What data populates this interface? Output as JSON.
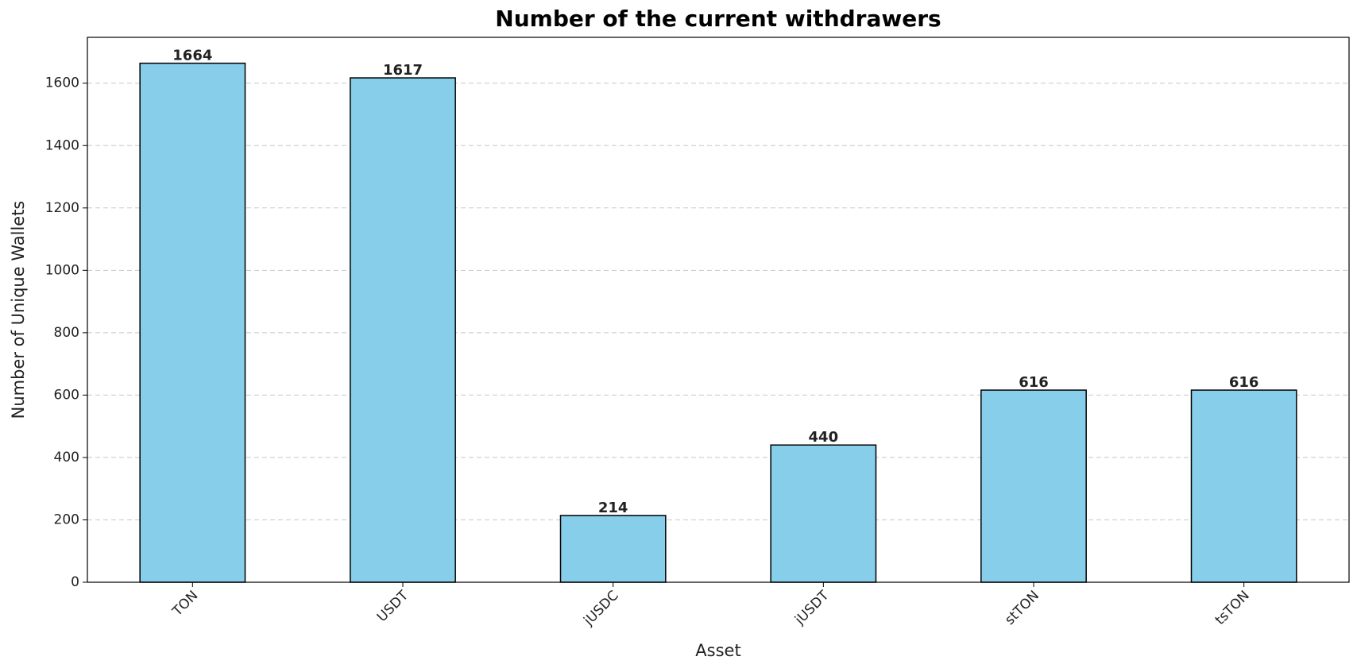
{
  "chart_data": {
    "type": "bar",
    "title": "Number of the current withdrawers",
    "x_label": "Asset",
    "y_label": "Number of Unique Wallets",
    "categories": [
      "TON",
      "USDT",
      "jUSDC",
      "jUSDT",
      "stTON",
      "tsTON"
    ],
    "values": [
      1664,
      1617,
      214,
      440,
      616,
      616
    ],
    "color": "#87ceeb",
    "ylim": [
      0,
      1747
    ],
    "yticks": [
      0,
      200,
      400,
      600,
      800,
      1000,
      1200,
      1400,
      1600
    ],
    "grid": true
  }
}
